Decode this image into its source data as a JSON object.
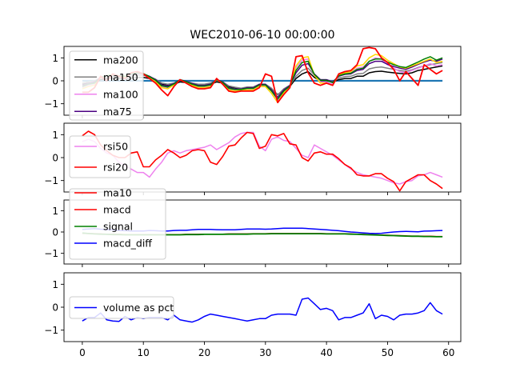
{
  "chart_data": {
    "title": "WEC2010-06-10 00:00:00",
    "type": "line",
    "x_ticks": [
      0,
      10,
      20,
      30,
      40,
      50,
      60
    ],
    "y_ticks": [
      -1,
      0,
      1
    ],
    "xlim": [
      -3,
      62
    ],
    "ylim": [
      -1.5,
      1.5
    ],
    "legend_position": "upper-left",
    "panels": [
      {
        "id": "ma",
        "series": [
          {
            "name": "",
            "color": "#1f77b4",
            "width": 2.2,
            "in_legend": false,
            "points": [
              [
                0,
                0.0
              ],
              [
                59,
                0.0
              ]
            ]
          },
          {
            "name": "ma200",
            "color": "#000000",
            "y": [
              -0.15,
              -0.1,
              -0.08,
              0.05,
              0.1,
              0.12,
              0.1,
              0.1,
              0.12,
              0.15,
              0.15,
              0.1,
              0.0,
              -0.15,
              -0.2,
              -0.15,
              -0.05,
              -0.08,
              -0.15,
              -0.2,
              -0.2,
              -0.15,
              -0.05,
              -0.1,
              -0.25,
              -0.3,
              -0.35,
              -0.3,
              -0.3,
              -0.2,
              -0.2,
              -0.35,
              -0.6,
              -0.4,
              -0.25,
              0.1,
              0.3,
              0.4,
              0.15,
              0.0,
              0.0,
              -0.05,
              0.05,
              0.1,
              0.1,
              0.2,
              0.2,
              0.35,
              0.4,
              0.42,
              0.38,
              0.35,
              0.32,
              0.3,
              0.35,
              0.45,
              0.5,
              0.55,
              0.6,
              0.65
            ]
          },
          {
            "name": "ma150",
            "color": "#808080",
            "y": [
              -0.1,
              -0.05,
              0.0,
              0.12,
              0.18,
              0.2,
              0.17,
              0.17,
              0.2,
              0.24,
              0.24,
              0.18,
              0.07,
              -0.1,
              -0.15,
              -0.1,
              0.02,
              -0.03,
              -0.1,
              -0.15,
              -0.15,
              -0.1,
              0.02,
              -0.05,
              -0.22,
              -0.28,
              -0.32,
              -0.27,
              -0.27,
              -0.15,
              -0.15,
              -0.32,
              -0.62,
              -0.35,
              -0.2,
              0.2,
              0.45,
              0.55,
              0.25,
              0.05,
              0.05,
              -0.03,
              0.12,
              0.18,
              0.2,
              0.3,
              0.32,
              0.52,
              0.58,
              0.6,
              0.55,
              0.5,
              0.45,
              0.42,
              0.48,
              0.58,
              0.65,
              0.7,
              0.75,
              0.8
            ]
          },
          {
            "name": "ma100",
            "color": "#ee82ee",
            "y": [
              -0.3,
              -0.2,
              -0.15,
              0.15,
              0.2,
              0.25,
              0.2,
              0.15,
              0.3,
              0.35,
              0.3,
              0.15,
              0.0,
              -0.25,
              -0.3,
              -0.15,
              0.05,
              -0.05,
              -0.15,
              -0.25,
              -0.25,
              -0.2,
              0.05,
              -0.1,
              -0.35,
              -0.4,
              -0.38,
              -0.35,
              -0.35,
              -0.2,
              -0.2,
              -0.45,
              -0.85,
              -0.45,
              -0.25,
              0.55,
              0.9,
              0.95,
              0.25,
              -0.05,
              -0.05,
              -0.15,
              0.2,
              0.3,
              0.35,
              0.55,
              0.6,
              0.85,
              1.0,
              0.95,
              0.7,
              0.55,
              0.4,
              0.35,
              0.45,
              0.55,
              0.65,
              0.75,
              0.65,
              0.7
            ]
          },
          {
            "name": "ma75",
            "color": "#4b0082",
            "y": [
              -0.2,
              -0.12,
              -0.05,
              0.15,
              0.22,
              0.26,
              0.22,
              0.2,
              0.28,
              0.32,
              0.3,
              0.2,
              0.05,
              -0.18,
              -0.22,
              -0.12,
              0.05,
              -0.02,
              -0.12,
              -0.2,
              -0.2,
              -0.15,
              0.05,
              -0.05,
              -0.3,
              -0.35,
              -0.36,
              -0.3,
              -0.3,
              -0.15,
              -0.15,
              -0.4,
              -0.72,
              -0.4,
              -0.2,
              0.35,
              0.68,
              0.75,
              0.3,
              0.05,
              0.05,
              -0.05,
              0.2,
              0.28,
              0.3,
              0.45,
              0.5,
              0.75,
              0.85,
              0.85,
              0.72,
              0.62,
              0.55,
              0.5,
              0.6,
              0.72,
              0.82,
              0.9,
              0.85,
              0.95
            ]
          },
          {
            "name": "",
            "color": "#ffd700",
            "in_legend": false,
            "y": [
              -0.35,
              -0.25,
              -0.2,
              0.15,
              0.22,
              0.28,
              0.22,
              0.17,
              0.32,
              0.38,
              0.32,
              0.12,
              -0.05,
              -0.3,
              -0.35,
              -0.18,
              0.05,
              -0.08,
              -0.2,
              -0.3,
              -0.3,
              -0.25,
              0.05,
              -0.12,
              -0.4,
              -0.45,
              -0.42,
              -0.4,
              -0.4,
              -0.25,
              -0.25,
              -0.55,
              -0.95,
              -0.52,
              -0.3,
              0.65,
              1.0,
              1.05,
              0.25,
              -0.1,
              -0.1,
              -0.2,
              0.25,
              0.35,
              0.4,
              0.65,
              0.7,
              1.0,
              1.15,
              1.1,
              0.9,
              0.75,
              0.6,
              0.55,
              0.65,
              0.75,
              0.85,
              0.95,
              0.8,
              0.85
            ]
          },
          {
            "name": "",
            "color": "#008000",
            "in_legend": false,
            "y": [
              -0.25,
              -0.15,
              -0.1,
              0.15,
              0.22,
              0.26,
              0.22,
              0.2,
              0.3,
              0.35,
              0.31,
              0.18,
              0.02,
              -0.22,
              -0.27,
              -0.14,
              0.05,
              -0.04,
              -0.15,
              -0.23,
              -0.23,
              -0.18,
              0.05,
              -0.07,
              -0.33,
              -0.38,
              -0.38,
              -0.33,
              -0.33,
              -0.18,
              -0.18,
              -0.45,
              -0.8,
              -0.45,
              -0.23,
              0.45,
              0.8,
              0.85,
              0.28,
              0.02,
              0.02,
              -0.08,
              0.22,
              0.3,
              0.33,
              0.5,
              0.55,
              0.85,
              0.95,
              0.95,
              0.82,
              0.7,
              0.62,
              0.58,
              0.7,
              0.82,
              0.95,
              1.05,
              0.9,
              1.0
            ]
          },
          {
            "name": "",
            "color": "#ff0000",
            "width": 1.8,
            "in_legend": false,
            "y": [
              -0.5,
              -0.5,
              -0.3,
              0.2,
              0.0,
              0.3,
              0.2,
              0.1,
              0.35,
              0.4,
              0.3,
              0.1,
              -0.1,
              -0.4,
              -0.65,
              -0.25,
              0.05,
              -0.1,
              -0.25,
              -0.35,
              -0.35,
              -0.3,
              0.1,
              -0.15,
              -0.45,
              -0.5,
              -0.45,
              -0.45,
              -0.45,
              -0.3,
              0.3,
              0.2,
              -0.95,
              -0.6,
              -0.3,
              1.05,
              1.1,
              0.35,
              -0.1,
              -0.2,
              -0.1,
              -0.2,
              0.3,
              0.4,
              0.45,
              0.7,
              1.4,
              1.45,
              1.4,
              1.0,
              0.8,
              0.5,
              0.0,
              0.4,
              0.1,
              -0.2,
              0.7,
              0.5,
              0.3,
              0.45
            ]
          }
        ],
        "legend": [
          {
            "label": "ma200",
            "color": "#000000"
          },
          {
            "label": "ma150",
            "color": "#808080"
          },
          {
            "label": "ma100",
            "color": "#ee82ee"
          },
          {
            "label": "ma75",
            "color": "#4b0082"
          }
        ]
      },
      {
        "id": "rsi",
        "series": [
          {
            "name": "rsi50",
            "color": "#ee82ee",
            "y": [
              0.7,
              0.8,
              0.7,
              0.4,
              0.2,
              0.1,
              -0.2,
              -0.35,
              -0.5,
              -0.65,
              -0.65,
              -0.85,
              -0.5,
              -0.2,
              0.2,
              0.3,
              0.2,
              0.3,
              0.35,
              0.4,
              0.45,
              0.55,
              0.35,
              0.5,
              0.65,
              0.9,
              1.05,
              1.1,
              1.1,
              0.5,
              0.3,
              0.8,
              0.9,
              0.75,
              0.7,
              0.4,
              0.1,
              0.0,
              0.55,
              0.4,
              0.25,
              0.1,
              -0.1,
              -0.3,
              -0.5,
              -0.65,
              -0.75,
              -0.8,
              -0.85,
              -0.9,
              -1.0,
              -1.1,
              -1.15,
              -1.05,
              -1.0,
              -0.8,
              -0.75,
              -0.65,
              -0.75,
              -0.85
            ]
          },
          {
            "name": "rsi20",
            "color": "#ff0000",
            "width": 1.6,
            "y": [
              0.95,
              1.15,
              1.0,
              0.55,
              0.3,
              0.1,
              0.0,
              0.0,
              0.2,
              0.25,
              -0.4,
              -0.4,
              -0.1,
              0.1,
              0.35,
              0.2,
              0.0,
              0.1,
              0.3,
              0.35,
              0.3,
              -0.2,
              -0.3,
              0.05,
              0.5,
              0.55,
              0.85,
              1.1,
              1.05,
              0.4,
              0.5,
              1.0,
              0.95,
              1.05,
              0.6,
              0.55,
              0.0,
              -0.15,
              0.2,
              0.25,
              0.15,
              0.15,
              -0.05,
              -0.3,
              -0.45,
              -0.75,
              -0.8,
              -0.8,
              -0.7,
              -0.7,
              -0.9,
              -1.05,
              -1.45,
              -1.05,
              -0.9,
              -0.75,
              -0.75,
              -1.0,
              -1.15,
              -1.35
            ]
          }
        ],
        "legend": [
          {
            "label": "rsi50",
            "color": "#ee82ee"
          },
          {
            "label": "rsi20",
            "color": "#ff0000"
          }
        ]
      },
      {
        "id": "macd",
        "series": [
          {
            "name": "macd",
            "color": "#ff0000",
            "y": [
              -0.06,
              -0.07,
              -0.08,
              -0.09,
              -0.1,
              -0.11,
              -0.11,
              -0.12,
              -0.12,
              -0.12,
              -0.12,
              -0.12,
              -0.12,
              -0.12,
              -0.12,
              -0.12,
              -0.12,
              -0.11,
              -0.11,
              -0.11,
              -0.1,
              -0.1,
              -0.1,
              -0.1,
              -0.09,
              -0.09,
              -0.09,
              -0.09,
              -0.08,
              -0.08,
              -0.08,
              -0.07,
              -0.07,
              -0.07,
              -0.07,
              -0.07,
              -0.07,
              -0.07,
              -0.07,
              -0.07,
              -0.08,
              -0.08,
              -0.08,
              -0.08,
              -0.09,
              -0.1,
              -0.11,
              -0.12,
              -0.13,
              -0.14,
              -0.15,
              -0.16,
              -0.17,
              -0.18,
              -0.19,
              -0.19,
              -0.2,
              -0.2,
              -0.21,
              -0.21
            ]
          },
          {
            "name": "signal",
            "color": "#008000",
            "width": 1.8,
            "y": [
              -0.05,
              -0.07,
              -0.09,
              -0.1,
              -0.11,
              -0.12,
              -0.12,
              -0.13,
              -0.13,
              -0.13,
              -0.13,
              -0.13,
              -0.13,
              -0.13,
              -0.13,
              -0.13,
              -0.13,
              -0.12,
              -0.12,
              -0.12,
              -0.11,
              -0.11,
              -0.11,
              -0.11,
              -0.1,
              -0.1,
              -0.1,
              -0.1,
              -0.09,
              -0.09,
              -0.09,
              -0.08,
              -0.08,
              -0.08,
              -0.08,
              -0.08,
              -0.08,
              -0.08,
              -0.08,
              -0.08,
              -0.09,
              -0.09,
              -0.09,
              -0.09,
              -0.1,
              -0.11,
              -0.12,
              -0.13,
              -0.14,
              -0.15,
              -0.16,
              -0.17,
              -0.18,
              -0.19,
              -0.2,
              -0.2,
              -0.21,
              -0.21,
              -0.22,
              -0.22
            ]
          },
          {
            "name": "macd_diff",
            "color": "#0000ff",
            "y": [
              0.12,
              0.14,
              0.16,
              0.13,
              0.11,
              0.1,
              0.07,
              0.06,
              0.05,
              0.05,
              0.05,
              0.07,
              0.06,
              0.05,
              0.05,
              0.07,
              0.08,
              0.08,
              0.1,
              0.12,
              0.12,
              0.12,
              0.11,
              0.1,
              0.1,
              0.1,
              0.12,
              0.14,
              0.14,
              0.14,
              0.13,
              0.14,
              0.16,
              0.18,
              0.18,
              0.18,
              0.18,
              0.16,
              0.14,
              0.12,
              0.1,
              0.08,
              0.06,
              0.03,
              0.0,
              -0.02,
              -0.04,
              -0.06,
              -0.07,
              -0.06,
              -0.03,
              0.0,
              0.02,
              0.03,
              0.02,
              0.01,
              0.04,
              0.05,
              0.06,
              0.07
            ]
          }
        ],
        "legend": [
          {
            "label": "ma10",
            "color": "#ff0000"
          },
          {
            "label": "macd",
            "color": "#ff0000"
          },
          {
            "label": "signal",
            "color": "#008000"
          },
          {
            "label": "macd_diff",
            "color": "#0000ff"
          }
        ]
      },
      {
        "id": "volume",
        "series": [
          {
            "name": "volume as pct",
            "color": "#0000ff",
            "y": [
              -0.6,
              -0.45,
              -0.45,
              -0.25,
              -0.55,
              -0.6,
              -0.62,
              -0.4,
              -0.55,
              -0.45,
              -0.5,
              -0.45,
              -0.45,
              -0.45,
              -0.55,
              -0.35,
              -0.55,
              -0.6,
              -0.65,
              -0.55,
              -0.4,
              -0.3,
              -0.35,
              -0.4,
              -0.45,
              -0.5,
              -0.55,
              -0.6,
              -0.55,
              -0.5,
              -0.5,
              -0.35,
              -0.3,
              -0.3,
              -0.3,
              -0.35,
              0.35,
              0.4,
              0.15,
              -0.1,
              -0.05,
              -0.15,
              -0.55,
              -0.45,
              -0.45,
              -0.35,
              -0.25,
              0.15,
              -0.5,
              -0.35,
              -0.4,
              -0.55,
              -0.35,
              -0.3,
              -0.3,
              -0.25,
              -0.15,
              0.2,
              -0.15,
              -0.3
            ]
          }
        ],
        "legend": [
          {
            "label": "volume as pct",
            "color": "#0000ff"
          }
        ]
      }
    ]
  }
}
